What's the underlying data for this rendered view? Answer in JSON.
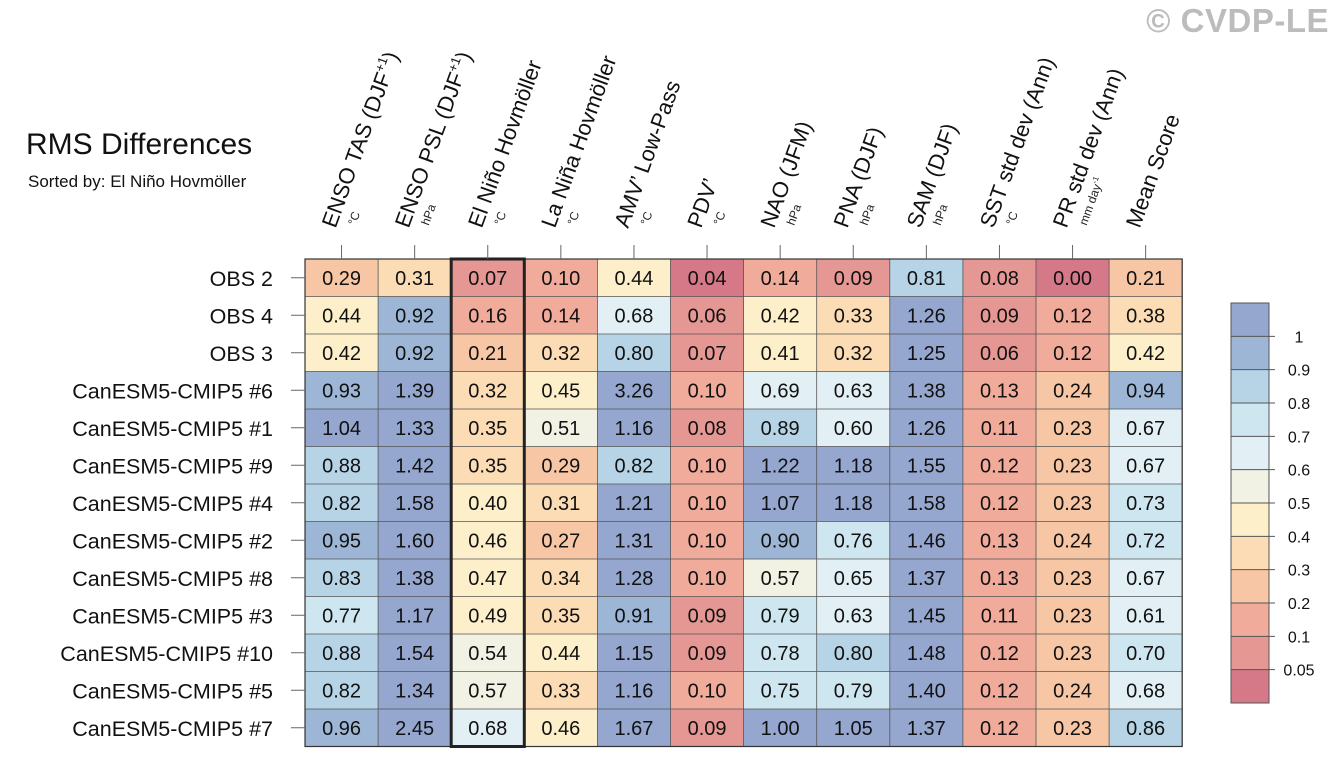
{
  "watermark": "© CVDP-LE",
  "chart_data": {
    "type": "heatmap",
    "title": "RMS Differences",
    "subtitle": "Sorted by: El Niño Hovmöller",
    "columns": [
      {
        "label": "ENSO TAS (DJF+1)",
        "label_main": "ENSO TAS (DJF",
        "label_sup": "+1",
        "label_end": ")",
        "unit": "°C"
      },
      {
        "label": "ENSO PSL (DJF+1)",
        "label_main": "ENSO PSL (DJF",
        "label_sup": "+1",
        "label_end": ")",
        "unit": "hPa"
      },
      {
        "label": "El Niño Hovmöller",
        "label_main": "El Niño Hovmöller",
        "label_sup": "",
        "label_end": "",
        "unit": "°C"
      },
      {
        "label": "La Niña Hovmöller",
        "label_main": "La Niña Hovmöller",
        "label_sup": "",
        "label_end": "",
        "unit": "°C"
      },
      {
        "label": "AMV' Low-Pass",
        "label_main": "AMV’ Low-Pass",
        "label_sup": "",
        "label_end": "",
        "unit": "°C"
      },
      {
        "label": "PDV'",
        "label_main": "PDV’",
        "label_sup": "",
        "label_end": "",
        "unit": "°C"
      },
      {
        "label": "NAO (JFM)",
        "label_main": "NAO (JFM)",
        "label_sup": "",
        "label_end": "",
        "unit": "hPa"
      },
      {
        "label": "PNA (DJF)",
        "label_main": "PNA (DJF)",
        "label_sup": "",
        "label_end": "",
        "unit": "hPa"
      },
      {
        "label": "SAM (DJF)",
        "label_main": "SAM (DJF)",
        "label_sup": "",
        "label_end": "",
        "unit": "hPa"
      },
      {
        "label": "SST std dev (Ann)",
        "label_main": "SST std dev (Ann)",
        "label_sup": "",
        "label_end": "",
        "unit": "°C"
      },
      {
        "label": "PR std dev (Ann)",
        "label_main": "PR std dev (Ann)",
        "label_sup": "",
        "label_end": "",
        "unit": "mm day-1",
        "unit_main": "mm day",
        "unit_sup": "-1"
      },
      {
        "label": "Mean Score",
        "label_main": "Mean Score",
        "label_sup": "",
        "label_end": "",
        "unit": ""
      }
    ],
    "rows": [
      "OBS 2",
      "OBS 4",
      "OBS 3",
      "CanESM5-CMIP5 #6",
      "CanESM5-CMIP5 #1",
      "CanESM5-CMIP5 #9",
      "CanESM5-CMIP5 #4",
      "CanESM5-CMIP5 #2",
      "CanESM5-CMIP5 #8",
      "CanESM5-CMIP5 #3",
      "CanESM5-CMIP5 #10",
      "CanESM5-CMIP5 #5",
      "CanESM5-CMIP5 #7"
    ],
    "values": [
      [
        0.29,
        0.31,
        0.07,
        0.1,
        0.44,
        0.04,
        0.14,
        0.09,
        0.81,
        0.08,
        0.0,
        0.21
      ],
      [
        0.44,
        0.92,
        0.16,
        0.14,
        0.68,
        0.06,
        0.42,
        0.33,
        1.26,
        0.09,
        0.12,
        0.38
      ],
      [
        0.42,
        0.92,
        0.21,
        0.32,
        0.8,
        0.07,
        0.41,
        0.32,
        1.25,
        0.06,
        0.12,
        0.42
      ],
      [
        0.93,
        1.39,
        0.32,
        0.45,
        3.26,
        0.1,
        0.69,
        0.63,
        1.38,
        0.13,
        0.24,
        0.94
      ],
      [
        1.04,
        1.33,
        0.35,
        0.51,
        1.16,
        0.08,
        0.89,
        0.6,
        1.26,
        0.11,
        0.23,
        0.67
      ],
      [
        0.88,
        1.42,
        0.35,
        0.29,
        0.82,
        0.1,
        1.22,
        1.18,
        1.55,
        0.12,
        0.23,
        0.67
      ],
      [
        0.82,
        1.58,
        0.4,
        0.31,
        1.21,
        0.1,
        1.07,
        1.18,
        1.58,
        0.12,
        0.23,
        0.73
      ],
      [
        0.95,
        1.6,
        0.46,
        0.27,
        1.31,
        0.1,
        0.9,
        0.76,
        1.46,
        0.13,
        0.24,
        0.72
      ],
      [
        0.83,
        1.38,
        0.47,
        0.34,
        1.28,
        0.1,
        0.57,
        0.65,
        1.37,
        0.13,
        0.23,
        0.67
      ],
      [
        0.77,
        1.17,
        0.49,
        0.35,
        0.91,
        0.09,
        0.79,
        0.63,
        1.45,
        0.11,
        0.23,
        0.61
      ],
      [
        0.88,
        1.54,
        0.54,
        0.44,
        1.15,
        0.09,
        0.78,
        0.8,
        1.48,
        0.12,
        0.23,
        0.7
      ],
      [
        0.82,
        1.34,
        0.57,
        0.33,
        1.16,
        0.1,
        0.75,
        0.79,
        1.4,
        0.12,
        0.24,
        0.68
      ],
      [
        0.96,
        2.45,
        0.68,
        0.46,
        1.67,
        0.09,
        1.0,
        1.05,
        1.37,
        0.12,
        0.23,
        0.86
      ]
    ],
    "highlighted_column": 2,
    "colorbar": {
      "bounds": [
        0.05,
        0.1,
        0.2,
        0.3,
        0.4,
        0.5,
        0.6,
        0.7,
        0.8,
        0.9,
        1
      ],
      "tick_labels": [
        "0.05",
        "0.1",
        "0.2",
        "0.3",
        "0.4",
        "0.5",
        "0.6",
        "0.7",
        "0.8",
        "0.9",
        "1"
      ],
      "colors": [
        "#d57988",
        "#e59794",
        "#f1ab9a",
        "#f7c7a5",
        "#fbdcb4",
        "#fcefc9",
        "#f1f1e4",
        "#e2f0f5",
        "#cde6ef",
        "#b6d4e6",
        "#9db6d6",
        "#95a6cf"
      ]
    }
  }
}
